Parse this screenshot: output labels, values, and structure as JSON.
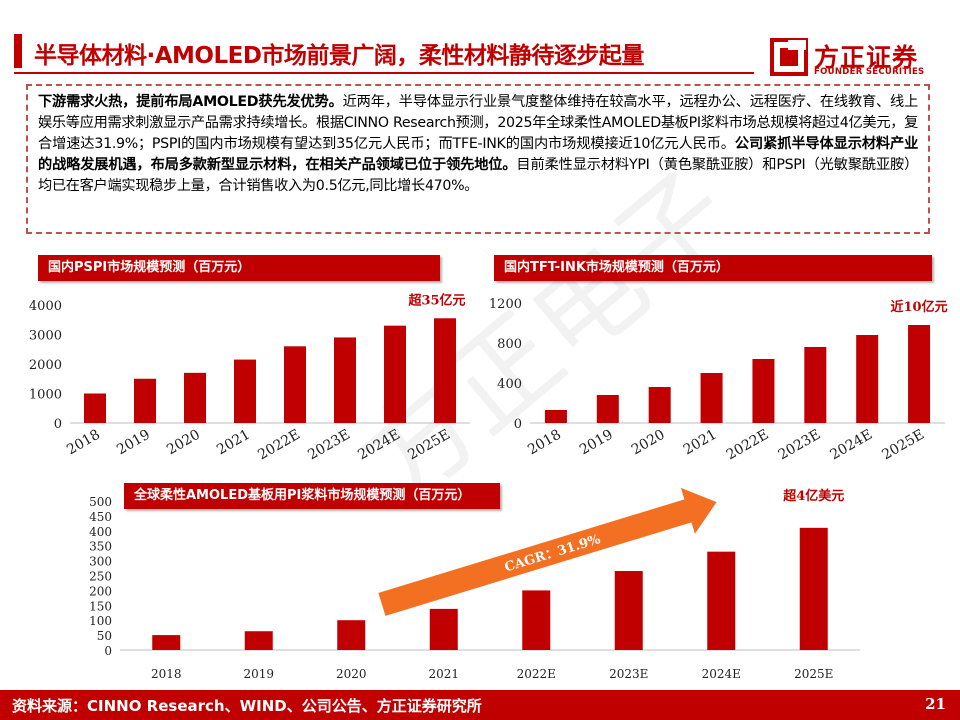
{
  "header": {
    "title": "半导体材料·AMOLED市场前景广阔，柔性材料静待逐步起量",
    "logo_cn": "方正证券",
    "logo_en": "FOUNDER SECURITIES"
  },
  "summary": {
    "p1_bold": "下游需求火热，提前布局AMOLED获先发优势。",
    "p1_text": "近两年，半导体显示行业景气度整体维持在较高水平，远程办公、远程医疗、在线教育、线上娱乐等应用需求刺激显示产品需求持续增长。根据CINNO Research预测，2025年全球柔性AMOLED基板PI浆料市场总规模将超过4亿美元，复合增速达31.9%；PSPI的国内市场规模有望达到35亿元人民币；而TFE-INK的国内市场规模接近10亿元人民币。",
    "p2_bold": "公司紧抓半导体显示材料产业的战略发展机遇，布局多款新型显示材料，在相关产品领域已位于领先地位。",
    "p2_text": "目前柔性显示材料YPI（黄色聚酰亚胺）和PSPI（光敏聚酰亚胺）均已在客户端实现稳步上量，合计销售收入为0.5亿元,同比增长470%。"
  },
  "watermark": "方正电子",
  "chart_data": [
    {
      "type": "bar",
      "title": "国内PSPI市场规模预测（百万元）",
      "categories": [
        "2018",
        "2019",
        "2020",
        "2021",
        "2022E",
        "2023E",
        "2024E",
        "2025E"
      ],
      "values": [
        1000,
        1500,
        1700,
        2150,
        2600,
        2900,
        3300,
        3550
      ],
      "ylim": [
        0,
        4000
      ],
      "yticks": [
        0,
        1000,
        2000,
        3000,
        4000
      ],
      "annotation": "超35亿元",
      "color": "#c00000"
    },
    {
      "type": "bar",
      "title": "国内TFT-INK市场规模预测（百万元）",
      "categories": [
        "2018",
        "2019",
        "2020",
        "2021",
        "2022E",
        "2023E",
        "2024E",
        "2025E"
      ],
      "values": [
        130,
        280,
        360,
        500,
        640,
        760,
        880,
        980
      ],
      "ylim": [
        0,
        1200
      ],
      "yticks": [
        0,
        400,
        800,
        1200
      ],
      "annotation": "近10亿元",
      "color": "#c00000"
    },
    {
      "type": "bar",
      "title": "全球柔性AMOLED基板用PI浆料市场规模预测（百万元）",
      "categories": [
        "2018",
        "2019",
        "2020",
        "2021",
        "2022E",
        "2023E",
        "2024E",
        "2025E"
      ],
      "values": [
        50,
        63,
        100,
        138,
        200,
        265,
        330,
        410
      ],
      "ylim": [
        0,
        500
      ],
      "yticks": [
        0,
        50,
        100,
        150,
        200,
        250,
        300,
        350,
        400,
        450,
        500
      ],
      "annotation": "超4亿美元",
      "cagr_label": "CAGR：31.9%",
      "color": "#c00000"
    }
  ],
  "footer": {
    "source": "资料来源：CINNO Research、WIND、公司公告、方正证券研究所",
    "page": "21"
  },
  "colors": {
    "accent": "#c00000",
    "arrow": "#f36f21"
  }
}
